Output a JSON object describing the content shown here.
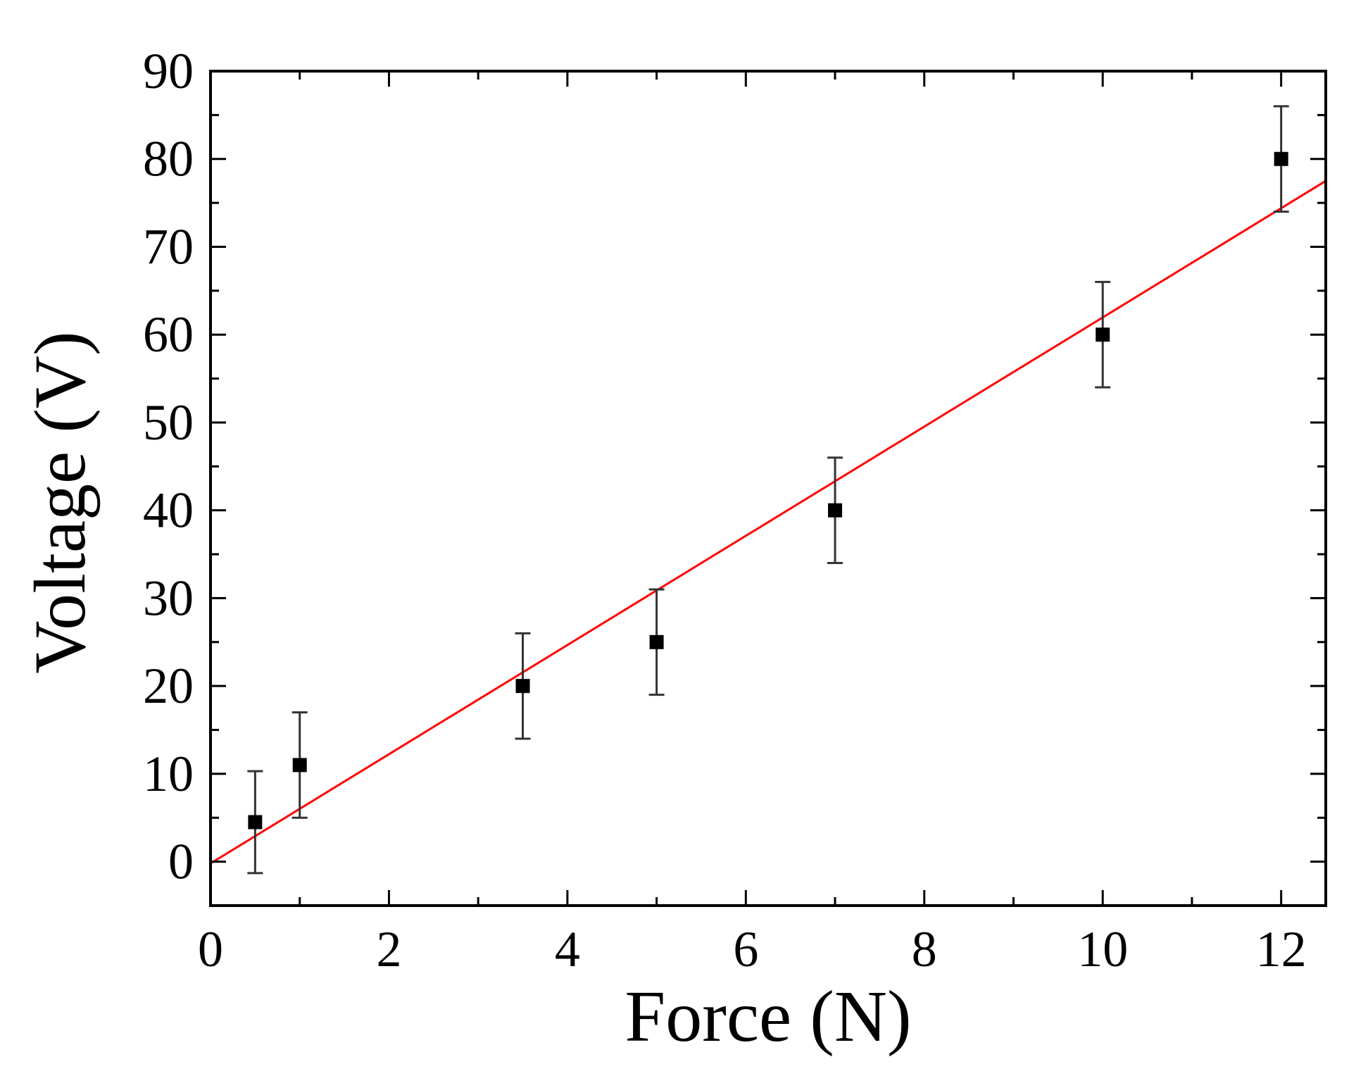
{
  "chart_data": {
    "type": "scatter",
    "title": "",
    "xlabel": "Force (N)",
    "ylabel": "Voltage (V)",
    "xlim": [
      0,
      12.5
    ],
    "ylim": [
      -5,
      90
    ],
    "xticks": [
      0,
      2,
      4,
      6,
      8,
      10,
      12
    ],
    "yticks": [
      0,
      10,
      20,
      30,
      40,
      50,
      60,
      70,
      80,
      90
    ],
    "grid": false,
    "legend": "none",
    "series": [
      {
        "type": "scatter",
        "marker": "square",
        "color": "#000000",
        "x": [
          0.5,
          1.0,
          3.5,
          5.0,
          7.0,
          10.0,
          12.0
        ],
        "y": [
          4.5,
          11.0,
          20.0,
          25.0,
          40.0,
          60.0,
          80.0
        ],
        "error": [
          5.8,
          6.0,
          6.0,
          6.0,
          6.0,
          6.0,
          6.0
        ]
      },
      {
        "type": "line",
        "color": "#ff0000",
        "x": [
          0,
          12.5
        ],
        "y": [
          -0.2,
          77.5
        ]
      }
    ]
  }
}
